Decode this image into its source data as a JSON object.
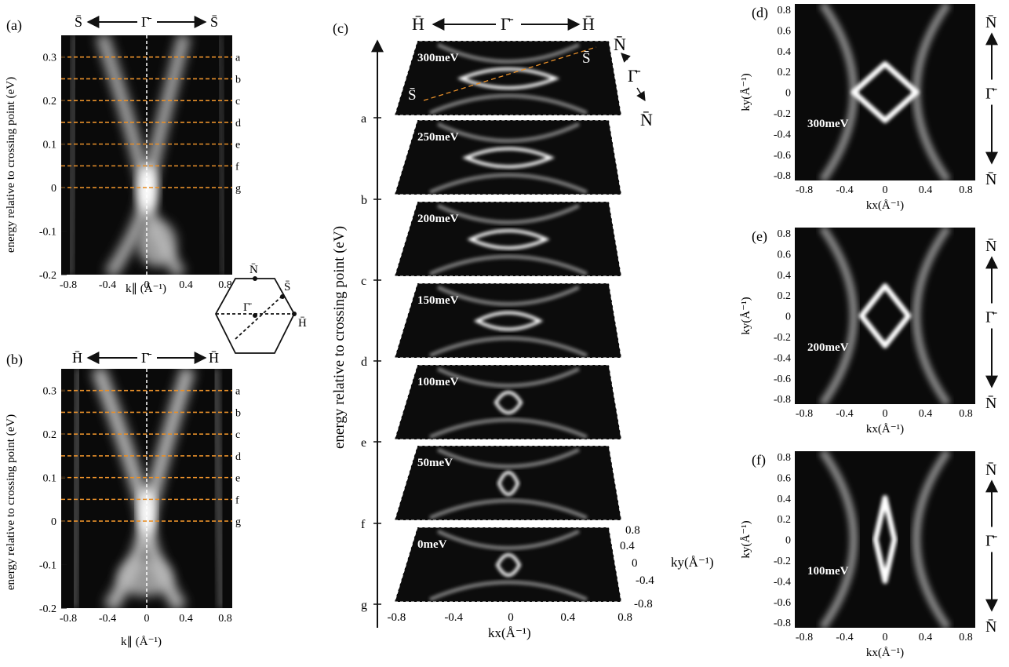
{
  "panels": {
    "a": {
      "label": "(a)",
      "direction": {
        "left": "S̄",
        "center": "Γ̄",
        "right": "S̄"
      },
      "ylabel": "energy relative to crossing point (eV)",
      "xlabel": "k∥ (Å⁻¹)",
      "yticks": [
        "0.3",
        "0.2",
        "0.1",
        "0",
        "-0.1",
        "-0.2"
      ],
      "xticks": [
        "-0.8",
        "-0.4",
        "0",
        "0.4",
        "0.8"
      ],
      "cut_labels": [
        "a",
        "b",
        "c",
        "d",
        "e",
        "f",
        "g"
      ]
    },
    "b": {
      "label": "(b)",
      "direction": {
        "left": "H̄",
        "center": "Γ̄",
        "right": "H̄"
      },
      "ylabel": "energy relative to crossing point (eV)",
      "xlabel": "k∥ (Å⁻¹)",
      "yticks": [
        "0.3",
        "0.2",
        "0.1",
        "0",
        "-0.1",
        "-0.2"
      ],
      "xticks": [
        "-0.8",
        "-0.4",
        "0",
        "0.4",
        "0.8"
      ],
      "cut_labels": [
        "a",
        "b",
        "c",
        "d",
        "e",
        "f",
        "g"
      ]
    },
    "bz": {
      "points": {
        "N": "N̄",
        "S": "S̄",
        "G": "Γ̄",
        "H": "H̄"
      }
    },
    "c": {
      "label": "(c)",
      "direction": {
        "left": "H̄",
        "center": "Γ̄",
        "right": "H̄"
      },
      "side_direction": {
        "top": "N̄",
        "middle": "Γ̄",
        "bottom": "N̄"
      },
      "diag_labels": {
        "left": "S̄",
        "right": "S̄"
      },
      "ylabel": "energy relative to crossing point (eV)",
      "xlabel": "kx(Å⁻¹)",
      "ky_label": "ky(Å⁻¹)",
      "axis_letters": [
        "a",
        "b",
        "c",
        "d",
        "e",
        "f",
        "g"
      ],
      "slices": [
        "300meV",
        "250meV",
        "200meV",
        "150meV",
        "100meV",
        "50meV",
        "0meV"
      ],
      "xticks": [
        "-0.8",
        "-0.4",
        "0",
        "0.4",
        "0.8"
      ],
      "kyticks": [
        "0.8",
        "0.4",
        "0",
        "-0.4",
        "-0.8"
      ]
    },
    "d": {
      "label": "(d)",
      "energy": "300meV",
      "direction": {
        "top": "N̄",
        "middle": "Γ̄",
        "bottom": "N̄"
      },
      "ylabel": "ky(Å⁻¹)",
      "xlabel": "kx(Å⁻¹)",
      "yticks": [
        "0.8",
        "0.6",
        "0.4",
        "0.2",
        "0",
        "-0.2",
        "-0.4",
        "-0.6",
        "-0.8"
      ],
      "xticks": [
        "-0.8",
        "-0.4",
        "0",
        "0.4",
        "0.8"
      ]
    },
    "e": {
      "label": "(e)",
      "energy": "200meV",
      "direction": {
        "top": "N̄",
        "middle": "Γ̄",
        "bottom": "N̄"
      },
      "ylabel": "ky(Å⁻¹)",
      "xlabel": "kx(Å⁻¹)",
      "yticks": [
        "0.8",
        "0.6",
        "0.4",
        "0.2",
        "0",
        "-0.2",
        "-0.4",
        "-0.6",
        "-0.8"
      ],
      "xticks": [
        "-0.8",
        "-0.4",
        "0",
        "0.4",
        "0.8"
      ]
    },
    "f": {
      "label": "(f)",
      "energy": "100meV",
      "direction": {
        "top": "N̄",
        "middle": "Γ̄",
        "bottom": "N̄"
      },
      "ylabel": "ky(Å⁻¹)",
      "xlabel": "kx(Å⁻¹)",
      "yticks": [
        "0.8",
        "0.6",
        "0.4",
        "0.2",
        "0",
        "-0.2",
        "-0.4",
        "-0.6",
        "-0.8"
      ],
      "xticks": [
        "-0.8",
        "-0.4",
        "0",
        "0.4",
        "0.8"
      ]
    }
  },
  "colors": {
    "cut_lines": "#e8902a",
    "map_background": "#0a0a0a",
    "band": "#ffffff"
  }
}
